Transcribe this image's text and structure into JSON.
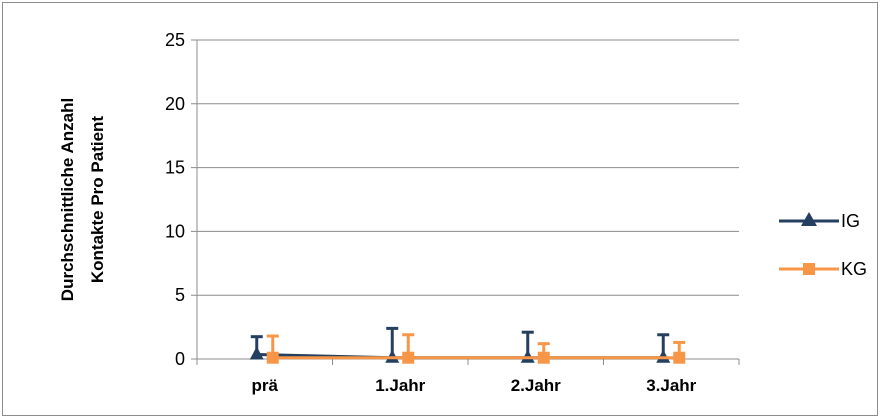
{
  "chart_data": {
    "type": "line",
    "title": "",
    "xlabel": "",
    "ylabel_lines": [
      "Durchschnittliche Anzahl",
      "Kontakte Pro Patient"
    ],
    "categories": [
      "prä",
      "1.Jahr",
      "2.Jahr",
      "3.Jahr"
    ],
    "ylim": [
      0,
      25
    ],
    "yticks": [
      "0",
      "5",
      "10",
      "15",
      "20",
      "25"
    ],
    "grid": true,
    "legend_position": "right",
    "series": [
      {
        "name": "IG",
        "color": "#243f60",
        "marker": "triangle",
        "values": [
          0.35,
          0.1,
          0.1,
          0.1
        ],
        "error_upper": [
          1.4,
          2.3,
          2.0,
          1.8
        ]
      },
      {
        "name": "KG",
        "color": "#f79646",
        "marker": "square",
        "values": [
          0.1,
          0.1,
          0.1,
          0.1
        ],
        "error_upper": [
          1.7,
          1.8,
          1.1,
          1.2
        ]
      }
    ]
  }
}
